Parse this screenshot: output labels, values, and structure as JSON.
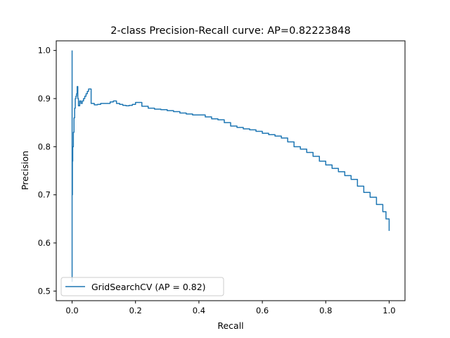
{
  "chart_data": {
    "type": "line",
    "title": "2-class Precision-Recall curve: AP=0.82223848",
    "xlabel": "Recall",
    "ylabel": "Precision",
    "xlim": [
      -0.05,
      1.05
    ],
    "ylim": [
      0.48,
      1.02
    ],
    "xticks": [
      0.0,
      0.2,
      0.4,
      0.6,
      0.8,
      1.0
    ],
    "xtick_labels": [
      "0.0",
      "0.2",
      "0.4",
      "0.6",
      "0.8",
      "1.0"
    ],
    "yticks": [
      0.5,
      0.6,
      0.7,
      0.8,
      0.9,
      1.0
    ],
    "ytick_labels": [
      "0.5",
      "0.6",
      "0.7",
      "0.8",
      "0.9",
      "1.0"
    ],
    "grid": false,
    "legend_position": "lower-left",
    "series": [
      {
        "name": "GridSearchCV (AP = 0.82)",
        "color": "#1f77b4",
        "x": [
          0.0,
          0.0,
          0.0,
          0.001,
          0.002,
          0.004,
          0.006,
          0.008,
          0.01,
          0.012,
          0.014,
          0.016,
          0.018,
          0.02,
          0.022,
          0.024,
          0.028,
          0.032,
          0.036,
          0.04,
          0.044,
          0.048,
          0.052,
          0.056,
          0.06,
          0.07,
          0.08,
          0.09,
          0.1,
          0.11,
          0.12,
          0.13,
          0.14,
          0.15,
          0.16,
          0.17,
          0.18,
          0.19,
          0.2,
          0.22,
          0.24,
          0.26,
          0.28,
          0.3,
          0.32,
          0.34,
          0.36,
          0.38,
          0.4,
          0.42,
          0.44,
          0.46,
          0.48,
          0.5,
          0.52,
          0.54,
          0.56,
          0.58,
          0.6,
          0.62,
          0.64,
          0.66,
          0.68,
          0.7,
          0.72,
          0.74,
          0.76,
          0.78,
          0.8,
          0.82,
          0.84,
          0.86,
          0.88,
          0.9,
          0.92,
          0.94,
          0.96,
          0.98,
          0.99,
          1.0
        ],
        "y": [
          1.0,
          0.52,
          0.7,
          0.77,
          0.8,
          0.83,
          0.86,
          0.88,
          0.9,
          0.905,
          0.91,
          0.925,
          0.9,
          0.885,
          0.885,
          0.895,
          0.89,
          0.895,
          0.9,
          0.905,
          0.91,
          0.915,
          0.92,
          0.92,
          0.89,
          0.887,
          0.888,
          0.89,
          0.89,
          0.89,
          0.893,
          0.895,
          0.89,
          0.888,
          0.886,
          0.885,
          0.886,
          0.888,
          0.892,
          0.884,
          0.88,
          0.878,
          0.877,
          0.875,
          0.873,
          0.87,
          0.868,
          0.866,
          0.866,
          0.862,
          0.858,
          0.856,
          0.85,
          0.843,
          0.84,
          0.837,
          0.835,
          0.832,
          0.828,
          0.825,
          0.822,
          0.818,
          0.81,
          0.8,
          0.795,
          0.788,
          0.78,
          0.77,
          0.762,
          0.755,
          0.748,
          0.74,
          0.732,
          0.718,
          0.705,
          0.695,
          0.68,
          0.665,
          0.65,
          0.625
        ]
      }
    ]
  }
}
